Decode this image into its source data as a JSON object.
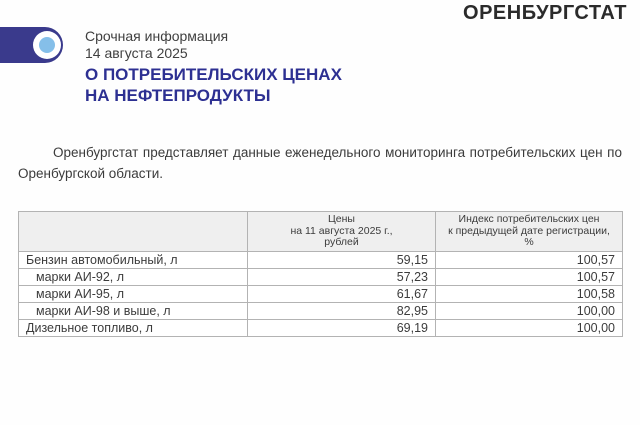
{
  "brand": "ОРЕНБУРГСТАТ",
  "masthead": {
    "urgency": "Срочная информация",
    "date": "14 августа 2025",
    "title_line1": "О ПОТРЕБИТЕЛЬСКИХ ЦЕНАХ",
    "title_line2": "НА НЕФТЕПРОДУКТЫ"
  },
  "intro": "Оренбургстат представляет данные еженедельного мониторинга потребительских цен по Оренбургской области.",
  "price_table": {
    "columns": {
      "item": "",
      "price": "Цены\nна 11 августа 2025 г.,\nрублей",
      "index": "Индекс потребительских цен\nк предыдущей дате регистрации,\n%"
    },
    "rows": [
      {
        "item": "Бензин автомобильный, л",
        "price": "59,15",
        "index": "100,57"
      },
      {
        "item": "марки АИ-92, л",
        "price": "57,23",
        "index": "100,57"
      },
      {
        "item": "марки АИ-95, л",
        "price": "61,67",
        "index": "100,58"
      },
      {
        "item": "марки АИ-98 и выше, л",
        "price": "82,95",
        "index": "100,00"
      },
      {
        "item": "Дизельное топливо, л",
        "price": "69,19",
        "index": "100,00"
      }
    ]
  },
  "colors": {
    "accent_blue": "#2d3092",
    "logo_blue": "#3a3a8c",
    "logo_dot_blue": "#85bfe9",
    "brand_text": "#2b2b2b",
    "body_text": "#3b3b3b",
    "table_border": "#b3b3b3",
    "table_header_bg": "#efefef"
  }
}
